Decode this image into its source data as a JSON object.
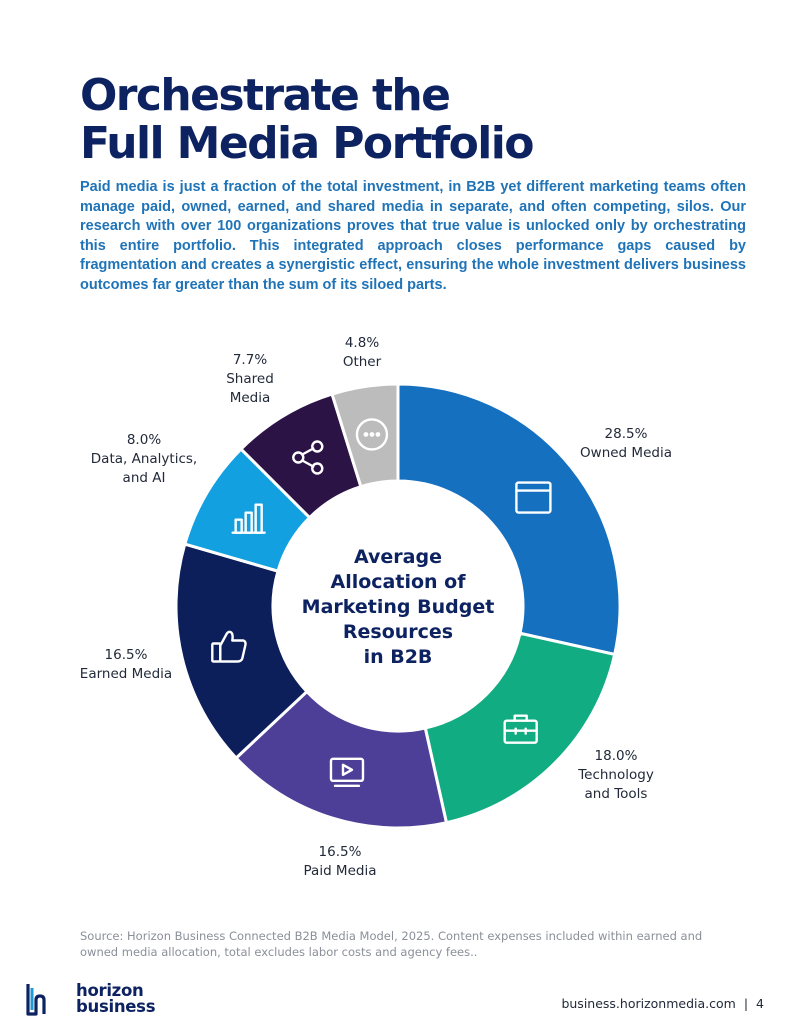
{
  "page": {
    "title_line1": "Orchestrate the",
    "title_line2": "Full Media Portfolio",
    "intro": "Paid media is just a fraction of the total investment, in B2B yet different marketing teams often manage paid, owned, earned, and shared media in separate, and often competing, silos. Our research with over 100 organizations proves that true value is unlocked only by orchestrating this entire portfolio. This integrated approach closes performance gaps caused by fragmentation and creates a synergistic effect, ensuring the whole investment delivers business outcomes far greater than the sum of its siloed parts.",
    "source": "Source: Horizon Business Connected B2B Media Model, 2025. Content expenses included within earned and owned media allocation, total excludes labor costs and agency fees..",
    "footer_url": "business.horizonmedia.com",
    "footer_sep": "|",
    "page_number": "4"
  },
  "logo": {
    "line1": "horizon",
    "line2": "business"
  },
  "chart_data": {
    "type": "pie",
    "style": "donut",
    "center_title_lines": [
      "Average",
      "Allocation of",
      "Marketing Budget",
      "Resources",
      "in B2B"
    ],
    "slices": [
      {
        "value": 28.5,
        "label_lines": [
          "28.5%",
          "Owned Media"
        ],
        "color": "#1570c0",
        "icon": "browser-window-icon"
      },
      {
        "value": 18.0,
        "label_lines": [
          "18.0%",
          "Technology",
          "and Tools"
        ],
        "color": "#11ac82",
        "icon": "toolbox-icon"
      },
      {
        "value": 16.5,
        "label_lines": [
          "16.5%",
          "Paid Media"
        ],
        "color": "#4d3f98",
        "icon": "video-play-icon"
      },
      {
        "value": 16.5,
        "label_lines": [
          "16.5%",
          "Earned Media"
        ],
        "color": "#0c1f5a",
        "icon": "thumbs-up-icon"
      },
      {
        "value": 8.0,
        "label_lines": [
          "8.0%",
          "Data, Analytics,",
          "and AI"
        ],
        "color": "#12a0e0",
        "icon": "bar-chart-icon"
      },
      {
        "value": 7.7,
        "label_lines": [
          "7.7%",
          "Shared",
          "Media"
        ],
        "color": "#2c1346",
        "icon": "share-icon"
      },
      {
        "value": 4.8,
        "label_lines": [
          "4.8%",
          "Other"
        ],
        "color": "#bcbcbc",
        "icon": "more-dots-icon"
      }
    ]
  }
}
